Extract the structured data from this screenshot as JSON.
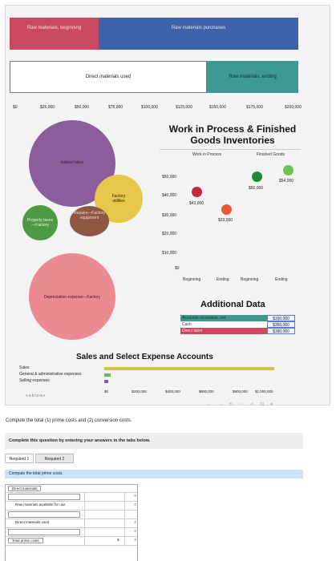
{
  "top_bars": {
    "raw_materials_beginning": "Raw materials, beginning",
    "raw_materials_purchases": "Raw materials purchases",
    "direct_materials_used": "Direct materials used",
    "raw_materials_ending": "Raw materials, ending"
  },
  "axis_ticks": [
    "$0",
    "$25,000",
    "$50,000",
    "$75,000",
    "$100,000",
    "$125,000",
    "$150,000",
    "$175,000",
    "$200,000"
  ],
  "bubbles": {
    "indirect_labor": "Indirect labor",
    "factory_utilities": "Factory utilities",
    "property_taxes": "Property taxes—Factory",
    "repairs": "Repairs—Factory equipment",
    "depreciation": "Depreciation expense—Factory"
  },
  "wip": {
    "title": "Work in Process & Finished Goods Inventories",
    "legend_wip": "Work in Process",
    "legend_fg": "Finished Goods",
    "y_ticks": [
      "$50,000",
      "$40,000",
      "$30,000",
      "$20,000",
      "$10,000",
      "$0"
    ],
    "x_labels": [
      "Beginning",
      "Ending",
      "Beginning",
      "Ending"
    ],
    "point_labels": [
      "$43,000",
      "$33,000",
      "$50,000",
      "$54,000"
    ],
    "colors": {
      "wip_begin": "#c8253a",
      "wip_end": "#e8573a",
      "fg_begin": "#1f8a3b",
      "fg_end": "#6ec25a"
    }
  },
  "chart_data": {
    "type": "scatter",
    "title": "Work in Process & Finished Goods Inventories",
    "categories": [
      "Beginning",
      "Ending",
      "Beginning",
      "Ending"
    ],
    "series": [
      {
        "name": "Work in Process",
        "values": [
          43000,
          33000
        ]
      },
      {
        "name": "Finished Goods",
        "values": [
          50000,
          54000
        ]
      }
    ],
    "ylim": [
      0,
      55000
    ]
  },
  "additional_data": {
    "title": "Additional Data",
    "rows": [
      {
        "label": "Accounts receivable, net",
        "value": "$150,000",
        "color": "#3e9a90"
      },
      {
        "label": "Cash",
        "value": "$350,000",
        "color": "#ffffff"
      },
      {
        "label": "Direct labor",
        "value": "$180,000",
        "color": "#c94a5e"
      }
    ]
  },
  "sales": {
    "title": "Sales and Select Expense Accounts",
    "labels": [
      "Sales",
      "General & administrative expenses",
      "Selling expenses"
    ],
    "ticks": [
      "$0",
      "$200,000",
      "$400,000",
      "$600,000",
      "$800,000",
      "$1,000,000"
    ],
    "values": [
      1000000,
      38000,
      25000
    ],
    "colors": [
      "#d2c34a",
      "#6cb35b",
      "#7c58a8"
    ]
  },
  "tableau_text": "+ableau",
  "toolbar_icons": "← → ⟲ ⋯ ≺ ⊡ ⌗",
  "question": {
    "text": "Compute the total (1) prime costs and (2) conversion costs.",
    "instructions": "Complete this question by entering your answers in the tabs below.",
    "tabs": [
      "Required 1",
      "Required 2"
    ],
    "section_title": "Compute the total prime costs.",
    "rows": [
      {
        "label": "Direct materials",
        "currency": "",
        "value": ""
      },
      {
        "label": "",
        "currency": "",
        "value": "0"
      },
      {
        "label": "Raw materials available for use",
        "currency": "",
        "value": "0"
      },
      {
        "label": "",
        "currency": "",
        "value": ""
      },
      {
        "label": "Direct materials used",
        "currency": "",
        "value": "0"
      },
      {
        "label": "",
        "currency": "",
        "value": "0"
      },
      {
        "label": "Total prime costs",
        "currency": "$",
        "value": "0"
      }
    ]
  }
}
